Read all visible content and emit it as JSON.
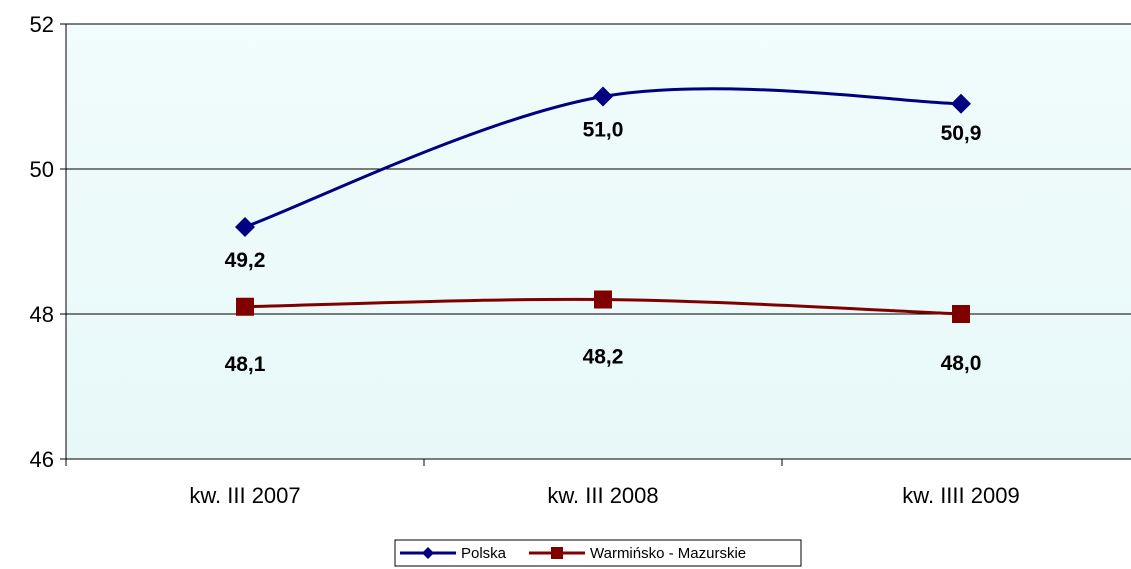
{
  "chart_data": {
    "type": "line",
    "categories": [
      "kw. III 2007",
      "kw. III 2008",
      "kw. IIII 2009"
    ],
    "series": [
      {
        "name": "Polska",
        "values": [
          49.2,
          51.0,
          50.9
        ],
        "labels": [
          "49,2",
          "51,0",
          "50,9"
        ],
        "color": "#000080",
        "marker": "diamond"
      },
      {
        "name": "Warmińsko - Mazurskie",
        "values": [
          48.1,
          48.2,
          48.0
        ],
        "labels": [
          "48,1",
          "48,2",
          "48,0"
        ],
        "color": "#800000",
        "marker": "square"
      }
    ],
    "yticks": [
      "46",
      "48",
      "50",
      "52"
    ],
    "ylim": [
      46,
      52
    ],
    "grid": true,
    "plot_background": "#eefafa",
    "legend_position": "bottom"
  }
}
